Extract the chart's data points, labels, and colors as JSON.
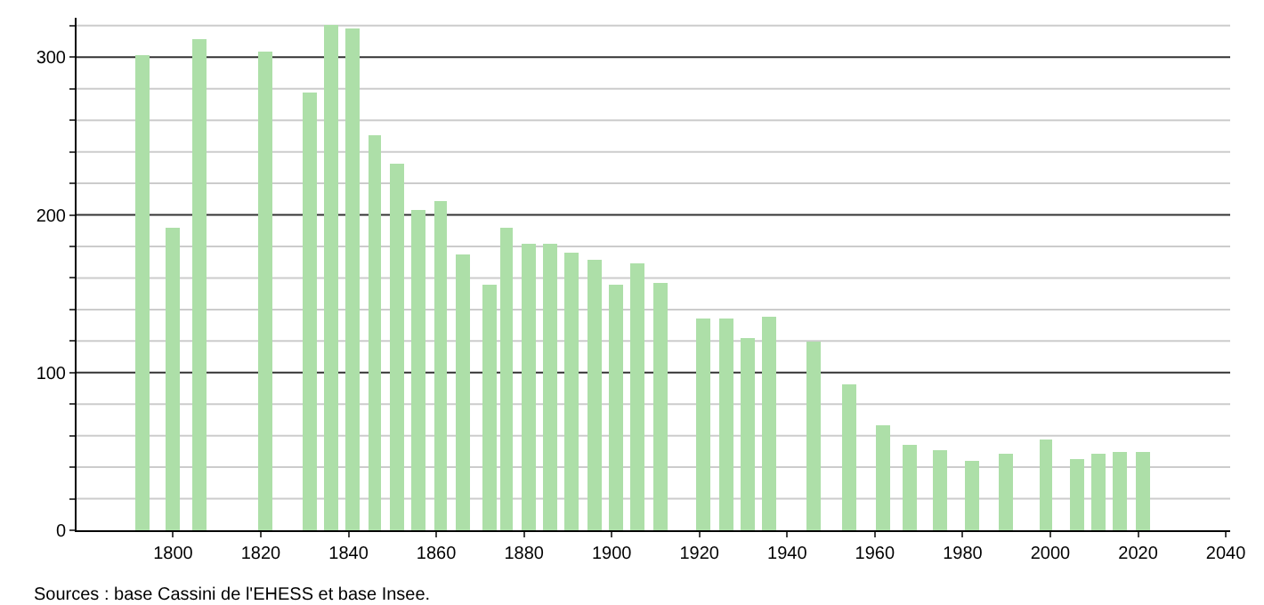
{
  "chart_data": {
    "type": "bar",
    "x": [
      1793,
      1800,
      1806,
      1821,
      1831,
      1836,
      1841,
      1846,
      1851,
      1856,
      1861,
      1866,
      1872,
      1876,
      1881,
      1886,
      1891,
      1896,
      1901,
      1906,
      1911,
      1921,
      1926,
      1931,
      1936,
      1946,
      1954,
      1962,
      1968,
      1975,
      1982,
      1990,
      1999,
      2006,
      2011,
      2016,
      2021
    ],
    "values": [
      301,
      192,
      311,
      304,
      278,
      321,
      318,
      250,
      233,
      203,
      209,
      175,
      156,
      192,
      182,
      182,
      176,
      171,
      156,
      169,
      157,
      134,
      134,
      122,
      135,
      120,
      93,
      67,
      54,
      51,
      44,
      49,
      57,
      45,
      49,
      50,
      50
    ],
    "color": "#addfa8",
    "xlim": [
      1778,
      2041
    ],
    "xticks": [
      1800,
      1820,
      1840,
      1860,
      1880,
      1900,
      1920,
      1940,
      1960,
      1980,
      2000,
      2020,
      2040
    ],
    "ylim": [
      0,
      325
    ],
    "yticks": [
      0,
      {
        "value": 20,
        "label": null
      },
      {
        "value": 40,
        "label": null
      },
      {
        "value": 60,
        "label": null
      },
      {
        "value": 80,
        "label": null
      },
      100,
      {
        "value": 120,
        "label": null
      },
      {
        "value": 140,
        "label": null
      },
      {
        "value": 160,
        "label": null
      },
      {
        "value": 180,
        "label": null
      },
      200,
      {
        "value": 220,
        "label": null
      },
      {
        "value": 240,
        "label": null
      },
      {
        "value": 260,
        "label": null
      },
      {
        "value": 280,
        "label": null
      },
      300,
      {
        "value": 320,
        "label": null
      }
    ],
    "grid": "y",
    "annotations": [
      "Sources : base Cassini de l'EHESS et base Insee."
    ]
  }
}
